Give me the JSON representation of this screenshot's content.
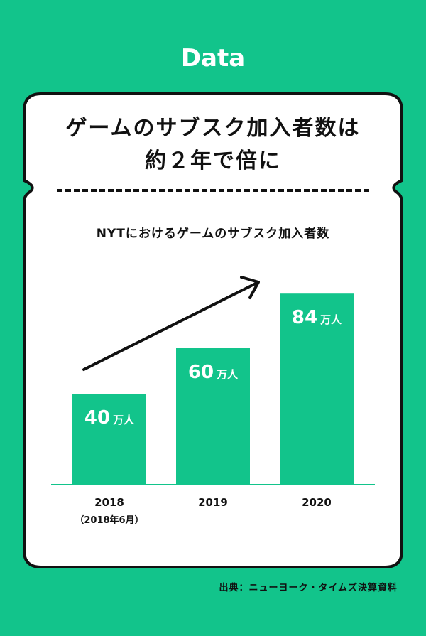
{
  "header": {
    "title": "Data"
  },
  "headline": {
    "line1": "ゲームのサブスク加入者数は",
    "line2": "約２年で倍に"
  },
  "colors": {
    "background": "#12c48b",
    "bar": "#12c48b",
    "card": "#ffffff",
    "ink": "#111111"
  },
  "chart_data": {
    "type": "bar",
    "title": "NYTにおけるゲームのサブスク加入者数",
    "categories": [
      "2018",
      "2019",
      "2020"
    ],
    "category_notes": [
      "（2018年6月）",
      "",
      ""
    ],
    "values": [
      40,
      60,
      84
    ],
    "value_labels": [
      "40",
      "60",
      "84"
    ],
    "unit": "万人",
    "xlabel": "",
    "ylabel": "",
    "grid": false,
    "annotation": "upward-trend-arrow"
  },
  "source": "出典：ニューヨーク・タイムズ決算資料"
}
